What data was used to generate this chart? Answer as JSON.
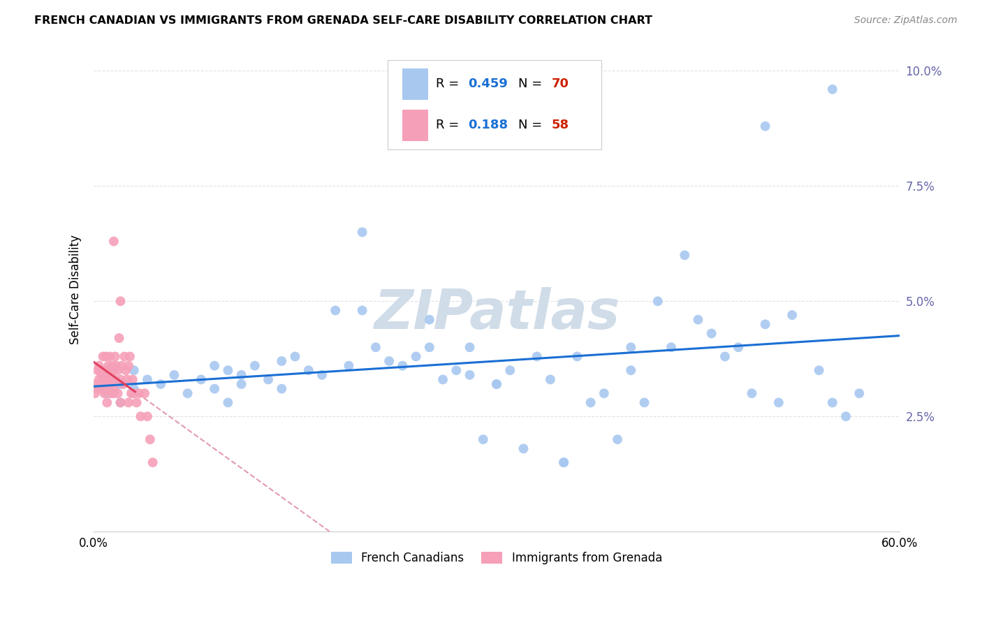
{
  "title": "FRENCH CANADIAN VS IMMIGRANTS FROM GRENADA SELF-CARE DISABILITY CORRELATION CHART",
  "source": "Source: ZipAtlas.com",
  "ylabel": "Self-Care Disability",
  "x_min": 0.0,
  "x_max": 0.6,
  "y_min": 0.0,
  "y_max": 0.105,
  "x_ticks": [
    0.0,
    0.1,
    0.2,
    0.3,
    0.4,
    0.5,
    0.6
  ],
  "y_ticks": [
    0.025,
    0.05,
    0.075,
    0.1
  ],
  "y_tick_labels": [
    "2.5%",
    "5.0%",
    "7.5%",
    "10.0%"
  ],
  "x_tick_labels": [
    "0.0%",
    "",
    "",
    "",
    "",
    "",
    "60.0%"
  ],
  "R_blue": "0.459",
  "N_blue": "70",
  "R_pink": "0.188",
  "N_pink": "58",
  "blue_scatter_color": "#a8c8f0",
  "pink_scatter_color": "#f5a0b8",
  "blue_line_color": "#1a6fd4",
  "pink_line_color": "#e04060",
  "pink_dashed_color": "#e090a8",
  "background_color": "#ffffff",
  "grid_color": "#e0e0e8",
  "watermark_text": "ZIPatlas",
  "tick_color": "#6666aa",
  "legend_r_color": "#1a6fd4",
  "legend_n_color": "#cc2200",
  "blue_x": [
    0.01,
    0.02,
    0.02,
    0.03,
    0.03,
    0.04,
    0.05,
    0.06,
    0.07,
    0.08,
    0.09,
    0.09,
    0.1,
    0.1,
    0.11,
    0.11,
    0.12,
    0.13,
    0.14,
    0.14,
    0.15,
    0.16,
    0.17,
    0.18,
    0.19,
    0.2,
    0.21,
    0.22,
    0.23,
    0.24,
    0.25,
    0.26,
    0.27,
    0.28,
    0.29,
    0.3,
    0.31,
    0.32,
    0.33,
    0.34,
    0.35,
    0.36,
    0.37,
    0.38,
    0.39,
    0.4,
    0.41,
    0.42,
    0.43,
    0.44,
    0.45,
    0.46,
    0.47,
    0.48,
    0.49,
    0.5,
    0.51,
    0.52,
    0.54,
    0.55,
    0.56,
    0.57,
    0.2,
    0.25,
    0.28,
    0.3,
    0.35,
    0.4,
    0.5,
    0.55
  ],
  "blue_y": [
    0.03,
    0.028,
    0.032,
    0.031,
    0.035,
    0.033,
    0.032,
    0.034,
    0.03,
    0.033,
    0.036,
    0.031,
    0.035,
    0.028,
    0.034,
    0.032,
    0.036,
    0.033,
    0.037,
    0.031,
    0.038,
    0.035,
    0.034,
    0.048,
    0.036,
    0.048,
    0.04,
    0.037,
    0.036,
    0.038,
    0.04,
    0.033,
    0.035,
    0.034,
    0.02,
    0.032,
    0.035,
    0.018,
    0.038,
    0.033,
    0.015,
    0.038,
    0.028,
    0.03,
    0.02,
    0.035,
    0.028,
    0.05,
    0.04,
    0.06,
    0.046,
    0.043,
    0.038,
    0.04,
    0.03,
    0.045,
    0.028,
    0.047,
    0.035,
    0.028,
    0.025,
    0.03,
    0.065,
    0.046,
    0.04,
    0.032,
    0.015,
    0.04,
    0.088,
    0.096
  ],
  "pink_x": [
    0.001,
    0.002,
    0.003,
    0.003,
    0.004,
    0.004,
    0.005,
    0.005,
    0.006,
    0.006,
    0.007,
    0.007,
    0.008,
    0.008,
    0.009,
    0.009,
    0.01,
    0.01,
    0.01,
    0.011,
    0.011,
    0.012,
    0.012,
    0.013,
    0.013,
    0.014,
    0.014,
    0.015,
    0.015,
    0.015,
    0.016,
    0.016,
    0.017,
    0.018,
    0.018,
    0.019,
    0.02,
    0.02,
    0.021,
    0.022,
    0.023,
    0.024,
    0.025,
    0.026,
    0.026,
    0.027,
    0.028,
    0.029,
    0.03,
    0.032,
    0.034,
    0.035,
    0.038,
    0.04,
    0.042,
    0.044,
    0.015,
    0.02
  ],
  "pink_y": [
    0.03,
    0.032,
    0.031,
    0.035,
    0.033,
    0.036,
    0.032,
    0.035,
    0.031,
    0.034,
    0.033,
    0.038,
    0.03,
    0.035,
    0.034,
    0.038,
    0.031,
    0.035,
    0.028,
    0.033,
    0.036,
    0.032,
    0.038,
    0.034,
    0.03,
    0.036,
    0.033,
    0.031,
    0.035,
    0.03,
    0.038,
    0.033,
    0.036,
    0.03,
    0.035,
    0.042,
    0.033,
    0.028,
    0.036,
    0.032,
    0.038,
    0.035,
    0.033,
    0.028,
    0.036,
    0.038,
    0.03,
    0.033,
    0.03,
    0.028,
    0.03,
    0.025,
    0.03,
    0.025,
    0.02,
    0.015,
    0.063,
    0.05
  ]
}
